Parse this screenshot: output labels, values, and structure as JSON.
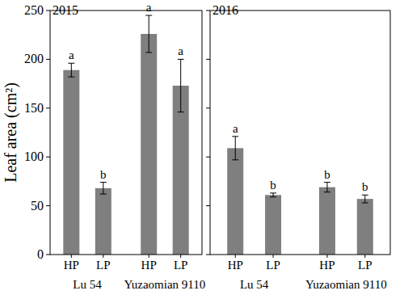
{
  "chart_data": [
    {
      "type": "bar",
      "title": "2015",
      "ylabel": "Leaf area (cm²)",
      "categories": [
        "HP",
        "LP",
        "HP",
        "LP"
      ],
      "group_labels": [
        "Lu 54",
        "Yuzaomian 9110"
      ],
      "values": [
        189,
        68,
        226,
        173
      ],
      "errors": [
        7,
        6,
        19,
        27
      ],
      "letters": [
        "a",
        "b",
        "a",
        "a"
      ],
      "color": "#7f7f7f",
      "ylim": [
        0,
        250
      ],
      "yticks": [
        0,
        50,
        100,
        150,
        200,
        250
      ]
    },
    {
      "type": "bar",
      "title": "2016",
      "categories": [
        "HP",
        "LP",
        "HP",
        "LP"
      ],
      "group_labels": [
        "Lu 54",
        "Yuzaomian 9110"
      ],
      "values": [
        109,
        61,
        69,
        57
      ],
      "errors": [
        12,
        2,
        5,
        4
      ],
      "letters": [
        "a",
        "b",
        "b",
        "b"
      ],
      "color": "#7f7f7f",
      "ylim": [
        0,
        250
      ],
      "yticks": [
        0,
        50,
        100,
        150,
        200,
        250
      ],
      "tick_labels": "x"
    }
  ]
}
